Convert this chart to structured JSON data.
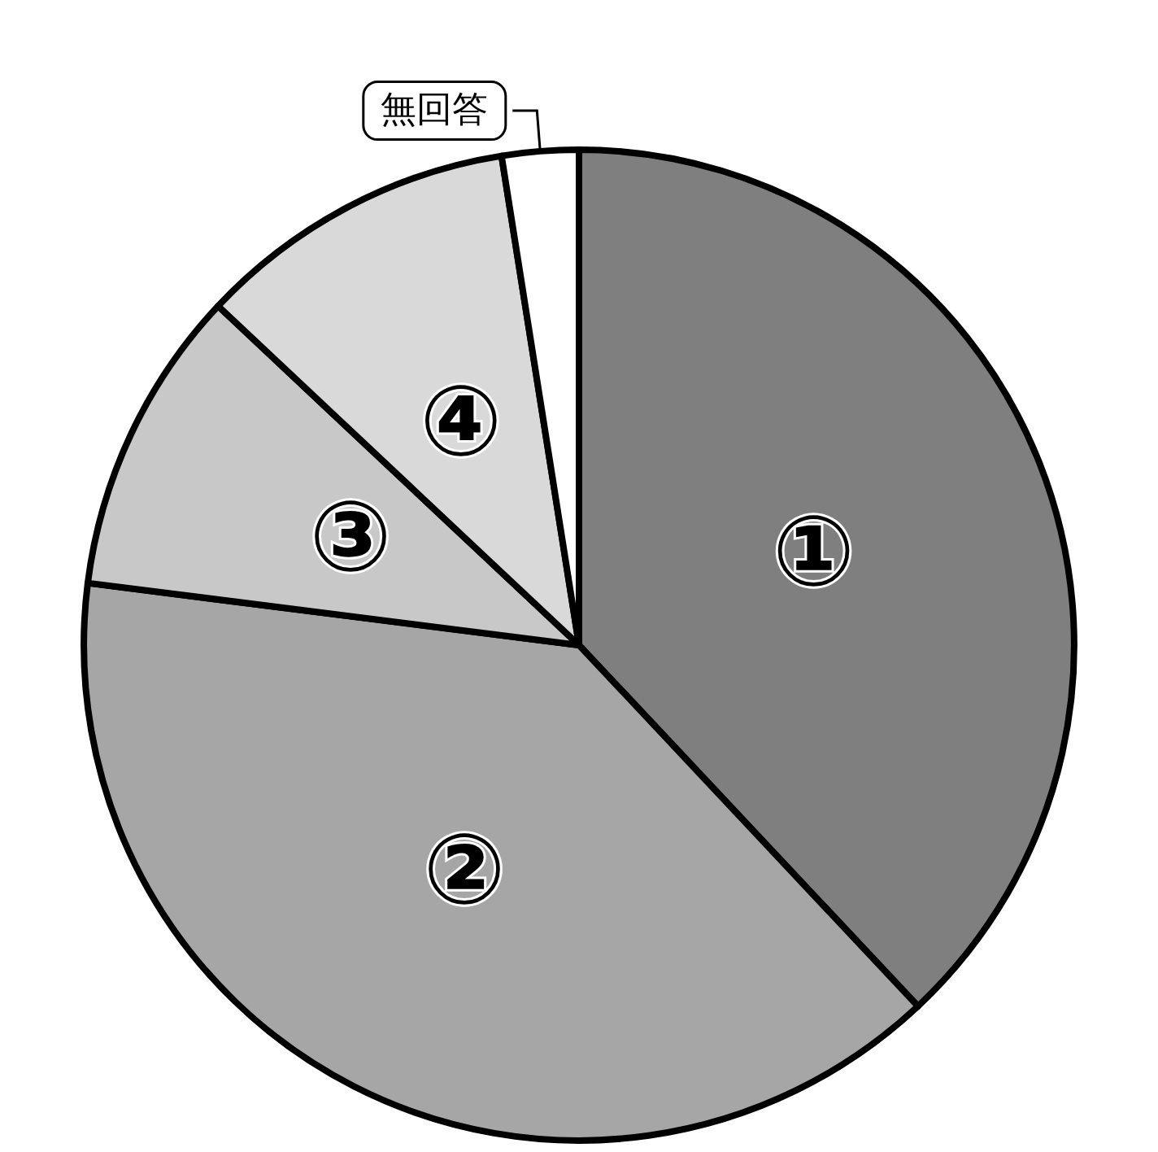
{
  "chart_data": {
    "type": "pie",
    "categories": [
      "①",
      "②",
      "③",
      "④",
      "無回答"
    ],
    "values": [
      38,
      39,
      10,
      10.5,
      2.5
    ],
    "colors": [
      "#7f7f7f",
      "#a6a6a6",
      "#c8c8c8",
      "#d9d9d9",
      "#ffffff"
    ],
    "legend": false
  }
}
